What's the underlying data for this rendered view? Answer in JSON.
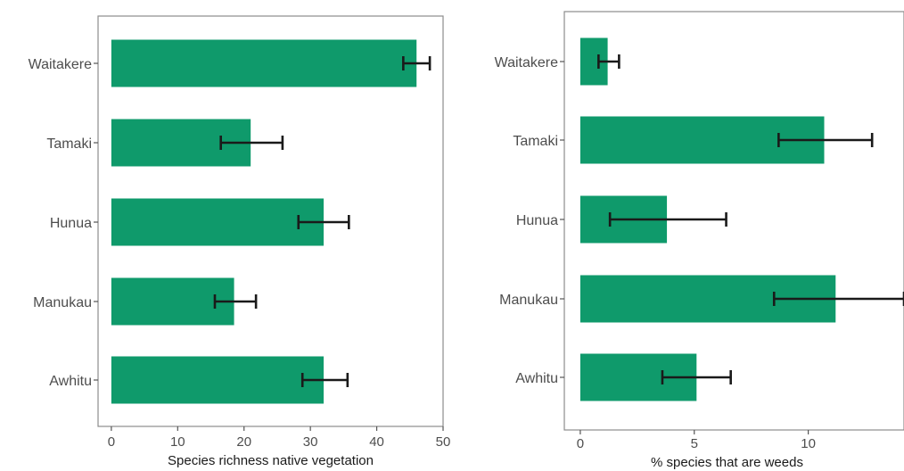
{
  "chart_data": [
    {
      "type": "bar",
      "orientation": "horizontal",
      "categories": [
        "Waitakere",
        "Tamaki",
        "Hunua",
        "Manukau",
        "Awhitu"
      ],
      "values": [
        46,
        21,
        32,
        18.5,
        32
      ],
      "error_low": [
        44,
        16.5,
        28.2,
        15.6,
        28.8
      ],
      "error_high": [
        48,
        25.8,
        35.8,
        21.8,
        35.6
      ],
      "xlabel": "Species richness native vegetation",
      "ylabel": "",
      "xlim": [
        -2,
        50
      ],
      "x_ticks": [
        0,
        10,
        20,
        30,
        40,
        50
      ],
      "x_tick_labels": [
        "0",
        "10",
        "20",
        "30",
        "40",
        "50"
      ],
      "grid": false,
      "bar_color": "#0f9a6b"
    },
    {
      "type": "bar",
      "orientation": "horizontal",
      "categories": [
        "Waitakere",
        "Tamaki",
        "Hunua",
        "Manukau",
        "Awhitu"
      ],
      "values": [
        1.2,
        10.7,
        3.8,
        11.2,
        5.1
      ],
      "error_low": [
        0.8,
        8.7,
        1.3,
        8.5,
        3.6
      ],
      "error_high": [
        1.7,
        12.8,
        6.4,
        14.2,
        6.6
      ],
      "xlabel": "% species that are weeds",
      "ylabel": "",
      "xlim": [
        -0.7,
        14.2
      ],
      "x_ticks": [
        0,
        5,
        10
      ],
      "x_tick_labels": [
        "0",
        "5",
        "10"
      ],
      "grid": false,
      "bar_color": "#0f9a6b"
    }
  ]
}
